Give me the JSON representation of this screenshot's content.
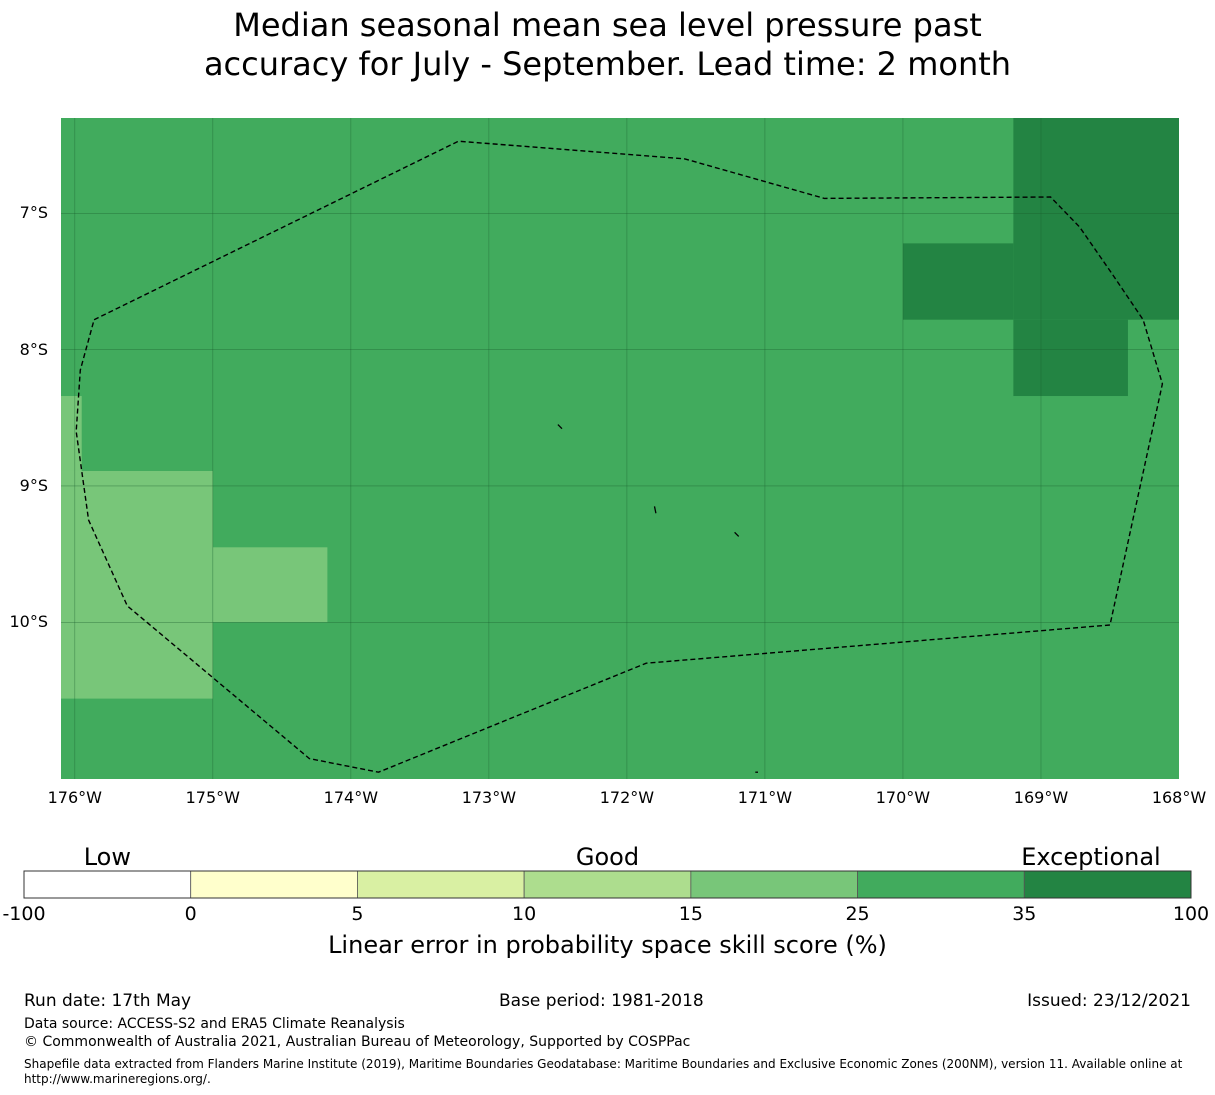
{
  "title": {
    "line1": "Median seasonal mean sea level pressure past",
    "line2": "accuracy for July - September. Lead time: 2 month"
  },
  "map": {
    "lon_range": [
      -176.1,
      -168.0
    ],
    "lat_range": [
      -11.15,
      -6.3
    ],
    "lat_ticks": [
      {
        "value": -7,
        "label": "7°S"
      },
      {
        "value": -8,
        "label": "8°S"
      },
      {
        "value": -9,
        "label": "9°S"
      },
      {
        "value": -10,
        "label": "10°S"
      }
    ],
    "lon_ticks": [
      {
        "value": -176,
        "label": "176°W"
      },
      {
        "value": -175,
        "label": "175°W"
      },
      {
        "value": -174,
        "label": "174°W"
      },
      {
        "value": -173,
        "label": "173°W"
      },
      {
        "value": -172,
        "label": "172°W"
      },
      {
        "value": -171,
        "label": "171°W"
      },
      {
        "value": -170,
        "label": "170°W"
      },
      {
        "value": -169,
        "label": "169°W"
      },
      {
        "value": -168,
        "label": "168°W"
      }
    ],
    "background_color": "#41ab5d",
    "cells": [
      {
        "name": "exceptional-zone-ne",
        "lon": [
          -169.2,
          -168.0
        ],
        "lat": [
          -7.78,
          -6.3
        ],
        "color": "#238443"
      },
      {
        "name": "exceptional-zone-mid",
        "lon": [
          -170.0,
          -169.2
        ],
        "lat": [
          -7.78,
          -7.22
        ],
        "color": "#238443"
      },
      {
        "name": "exceptional-zone-south",
        "lon": [
          -169.2,
          -168.37
        ],
        "lat": [
          -8.34,
          -7.78
        ],
        "color": "#238443"
      },
      {
        "name": "good-zone-w1",
        "lon": [
          -176.1,
          -175.95
        ],
        "lat": [
          -8.89,
          -8.34
        ],
        "color": "#78c679"
      },
      {
        "name": "good-zone-w2",
        "lon": [
          -176.1,
          -175.0
        ],
        "lat": [
          -10.56,
          -8.89
        ],
        "color": "#78c679"
      },
      {
        "name": "good-zone-w3",
        "lon": [
          -175.0,
          -174.17
        ],
        "lat": [
          -10.0,
          -9.45
        ],
        "color": "#78c679"
      }
    ],
    "eez_boundary": [
      [
        -175.86,
        -7.78
      ],
      [
        -173.22,
        -6.47
      ],
      [
        -171.58,
        -6.6
      ],
      [
        -170.57,
        -6.89
      ],
      [
        -168.93,
        -6.88
      ],
      [
        -168.72,
        -7.1
      ],
      [
        -168.48,
        -7.45
      ],
      [
        -168.26,
        -7.78
      ],
      [
        -168.12,
        -8.25
      ],
      [
        -168.5,
        -10.02
      ],
      [
        -171.86,
        -10.3
      ],
      [
        -173.8,
        -11.1
      ],
      [
        -174.3,
        -11.0
      ],
      [
        -175.62,
        -9.88
      ],
      [
        -175.9,
        -9.25
      ],
      [
        -175.99,
        -8.6
      ],
      [
        -175.96,
        -8.15
      ],
      [
        -175.86,
        -7.78
      ]
    ],
    "islands": [
      [
        [
          -172.5,
          -8.55
        ],
        [
          -172.47,
          -8.58
        ]
      ],
      [
        [
          -171.8,
          -9.15
        ],
        [
          -171.79,
          -9.2
        ]
      ],
      [
        [
          -171.22,
          -9.34
        ],
        [
          -171.19,
          -9.37
        ]
      ],
      [
        [
          -171.07,
          -11.1
        ],
        [
          -171.05,
          -11.1
        ]
      ]
    ]
  },
  "colorbar": {
    "categories": [
      {
        "label": "Low",
        "at": 0.5
      },
      {
        "label": "Good",
        "at": 3.5
      },
      {
        "label": "Exceptional",
        "at": 6.4
      }
    ],
    "bins": [
      {
        "from": "-100",
        "to": "0",
        "color": "#ffffff"
      },
      {
        "from": "0",
        "to": "5",
        "color": "#ffffcc"
      },
      {
        "from": "5",
        "to": "10",
        "color": "#d9f0a3"
      },
      {
        "from": "10",
        "to": "15",
        "color": "#addd8e"
      },
      {
        "from": "15",
        "to": "25",
        "color": "#78c679"
      },
      {
        "from": "25",
        "to": "35",
        "color": "#41ab5d"
      },
      {
        "from": "35",
        "to": "100",
        "color": "#238443"
      }
    ],
    "ticks": [
      "-100",
      "0",
      "5",
      "10",
      "15",
      "25",
      "35",
      "100"
    ],
    "label": "Linear error in probability space skill score (%)"
  },
  "footer": {
    "run_date": "Run date: 17th May",
    "base_period": "Base period: 1981-2018",
    "issued": "Issued: 23/12/2021",
    "data_source": "Data source: ACCESS-S2 and ERA5 Climate Reanalysis",
    "copyright": "© Commonwealth of Australia 2021, Australian Bureau of Meteorology, Supported by COSPPac",
    "shapefile_note": "Shapefile data extracted from Flanders Marine Institute (2019), Maritime Boundaries Geodatabase: Maritime Boundaries and Exclusive Economic Zones (200NM), version 11. Available online at http://www.marineregions.org/."
  }
}
